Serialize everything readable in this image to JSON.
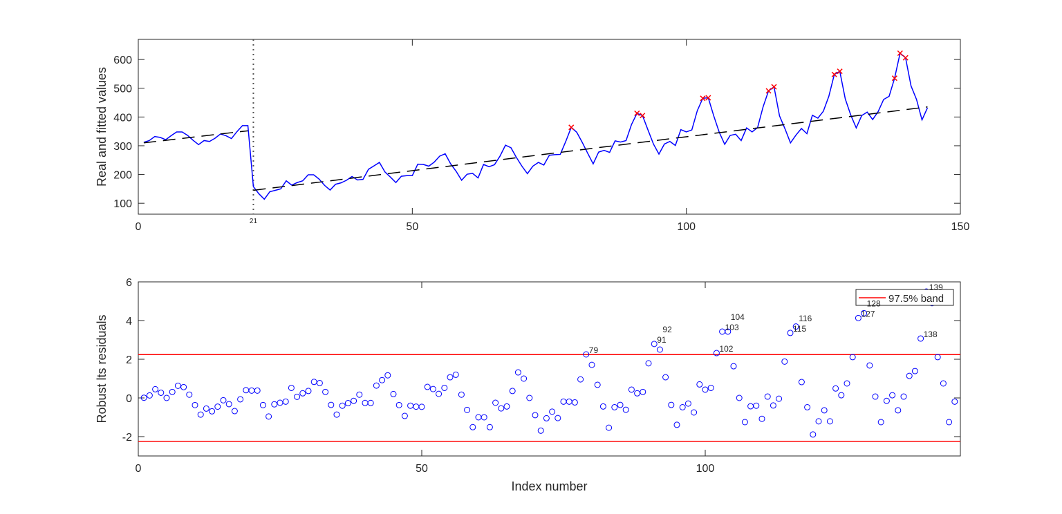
{
  "chart_data": [
    {
      "type": "line",
      "ylabel": "Real and fitted values",
      "xlabel": "",
      "xlim": [
        0,
        150
      ],
      "ylim": [
        62,
        670
      ],
      "xticks": [
        0,
        50,
        100,
        150
      ],
      "yticks": [
        100,
        200,
        300,
        400,
        500,
        600
      ],
      "extra_xtick": {
        "value": 21,
        "label": "21"
      },
      "break_line_x": 21,
      "series_color": "#0000ff",
      "fitted_color": "#000000",
      "outlier_color": "#ff0000",
      "real": [
        312,
        318,
        332,
        329,
        321,
        335,
        348,
        348,
        336,
        319,
        304,
        318,
        315,
        326,
        341,
        335,
        325,
        349,
        370,
        370,
        158,
        133,
        114,
        140,
        145,
        150,
        178,
        163,
        172,
        178,
        199,
        199,
        184,
        162,
        146,
        166,
        171,
        180,
        193,
        181,
        183,
        218,
        230,
        242,
        209,
        191,
        172,
        194,
        196,
        196,
        236,
        235,
        229,
        243,
        264,
        272,
        237,
        211,
        180,
        201,
        204,
        188,
        235,
        227,
        234,
        264,
        302,
        293,
        259,
        229,
        203,
        229,
        242,
        233,
        267,
        269,
        270,
        315,
        364,
        347,
        312,
        274,
        237,
        278,
        284,
        277,
        317,
        313,
        318,
        374,
        413,
        405,
        355,
        306,
        271,
        306,
        315,
        301,
        356,
        348,
        355,
        422,
        465,
        467,
        404,
        347,
        305,
        336,
        340,
        318,
        362,
        348,
        363,
        435,
        491,
        505,
        404,
        359,
        310,
        337,
        360,
        342,
        406,
        396,
        420,
        472,
        548,
        559,
        463,
        407,
        362,
        405,
        417,
        391,
        419,
        461,
        472,
        535,
        622,
        606,
        508,
        461,
        390,
        432
      ],
      "fitted_segments": [
        {
          "x": [
            1,
            20
          ],
          "y": [
            310,
            352
          ]
        },
        {
          "x": [
            21,
            144
          ],
          "y": [
            145,
            435
          ]
        }
      ],
      "outliers": [
        79,
        91,
        92,
        103,
        104,
        115,
        116,
        127,
        128,
        138,
        139,
        140
      ]
    },
    {
      "type": "scatter",
      "ylabel": "Robust lts residuals",
      "xlabel": "Index number",
      "xlim": [
        0,
        145
      ],
      "ylim": [
        -3,
        6
      ],
      "xticks": [
        0,
        50,
        100
      ],
      "yticks": [
        -2,
        0,
        2,
        4,
        6
      ],
      "band": 2.24,
      "band_color": "#ff0000",
      "marker_color": "#0000ff",
      "legend": {
        "label": "97.5% band",
        "placement": "top-right"
      },
      "residuals": [
        0.01,
        0.13,
        0.45,
        0.27,
        0.0,
        0.31,
        0.63,
        0.56,
        0.17,
        -0.37,
        -0.86,
        -0.55,
        -0.69,
        -0.45,
        -0.12,
        -0.32,
        -0.68,
        -0.07,
        0.4,
        0.38,
        0.38,
        -0.37,
        -0.96,
        -0.33,
        -0.25,
        -0.19,
        0.52,
        0.06,
        0.24,
        0.36,
        0.83,
        0.77,
        0.31,
        -0.36,
        -0.86,
        -0.4,
        -0.27,
        -0.15,
        0.17,
        -0.26,
        -0.26,
        0.64,
        0.92,
        1.17,
        0.2,
        -0.37,
        -0.93,
        -0.4,
        -0.45,
        -0.46,
        0.57,
        0.46,
        0.21,
        0.52,
        1.07,
        1.2,
        0.17,
        -0.62,
        -1.51,
        -1.0,
        -1.0,
        -1.51,
        -0.25,
        -0.54,
        -0.44,
        0.36,
        1.32,
        1.0,
        0.0,
        -0.89,
        -1.69,
        -1.05,
        -0.71,
        -1.04,
        -0.19,
        -0.19,
        -0.23,
        0.96,
        2.25,
        1.71,
        0.68,
        -0.44,
        -1.54,
        -0.48,
        -0.36,
        -0.61,
        0.43,
        0.24,
        0.31,
        1.79,
        2.79,
        2.5,
        1.07,
        -0.36,
        -1.39,
        -0.48,
        -0.29,
        -0.75,
        0.7,
        0.43,
        0.52,
        2.32,
        3.43,
        3.43,
        1.64,
        0.0,
        -1.25,
        -0.43,
        -0.4,
        -1.08,
        0.07,
        -0.39,
        -0.04,
        1.88,
        3.36,
        3.69,
        0.82,
        -0.48,
        -1.89,
        -1.21,
        -0.64,
        -1.21,
        0.49,
        0.14,
        0.75,
        2.11,
        4.13,
        4.38,
        1.68,
        0.07,
        -1.25,
        -0.15,
        0.14,
        -0.64,
        0.07,
        1.14,
        1.39,
        3.07,
        5.5,
        4.9,
        2.11,
        0.75,
        -1.25,
        -0.19
      ],
      "labeled_points": [
        79,
        91,
        92,
        102,
        103,
        104,
        115,
        116,
        127,
        128,
        138,
        139
      ]
    }
  ]
}
